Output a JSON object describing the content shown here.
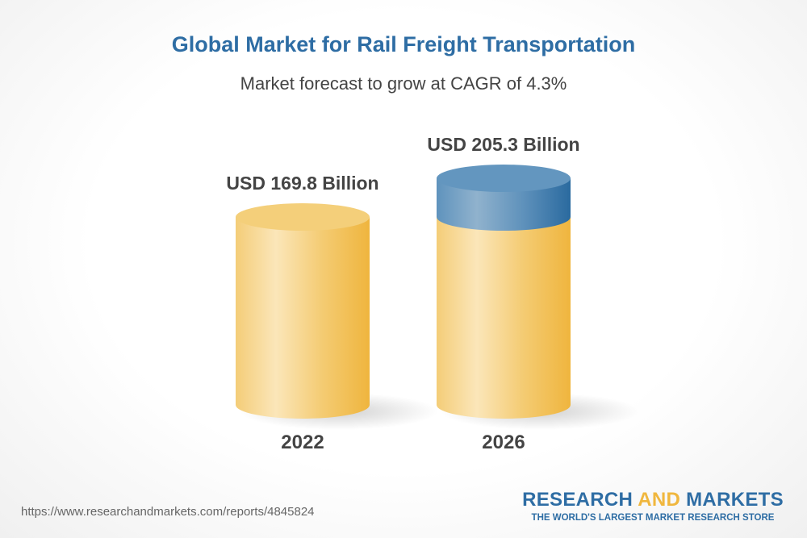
{
  "chart_data": {
    "type": "bar",
    "title": "Global Market for Rail Freight Transportation",
    "subtitle": "Market forecast to grow at CAGR of 4.3%",
    "categories": [
      "2022",
      "2026"
    ],
    "values": [
      169.8,
      205.3
    ],
    "data_labels": [
      "USD 169.8 Billion",
      "USD 205.3 Billion"
    ],
    "style": "3d-cylinder",
    "colors": {
      "base": "#f2c15c",
      "growth": "#3f77a8"
    }
  },
  "footer": {
    "url": "https://www.researchandmarkets.com/reports/4845824",
    "logo_word1": "RESEARCH",
    "logo_word2": "AND",
    "logo_word3": "MARKETS",
    "logo_tagline": "THE WORLD'S LARGEST MARKET RESEARCH STORE"
  }
}
